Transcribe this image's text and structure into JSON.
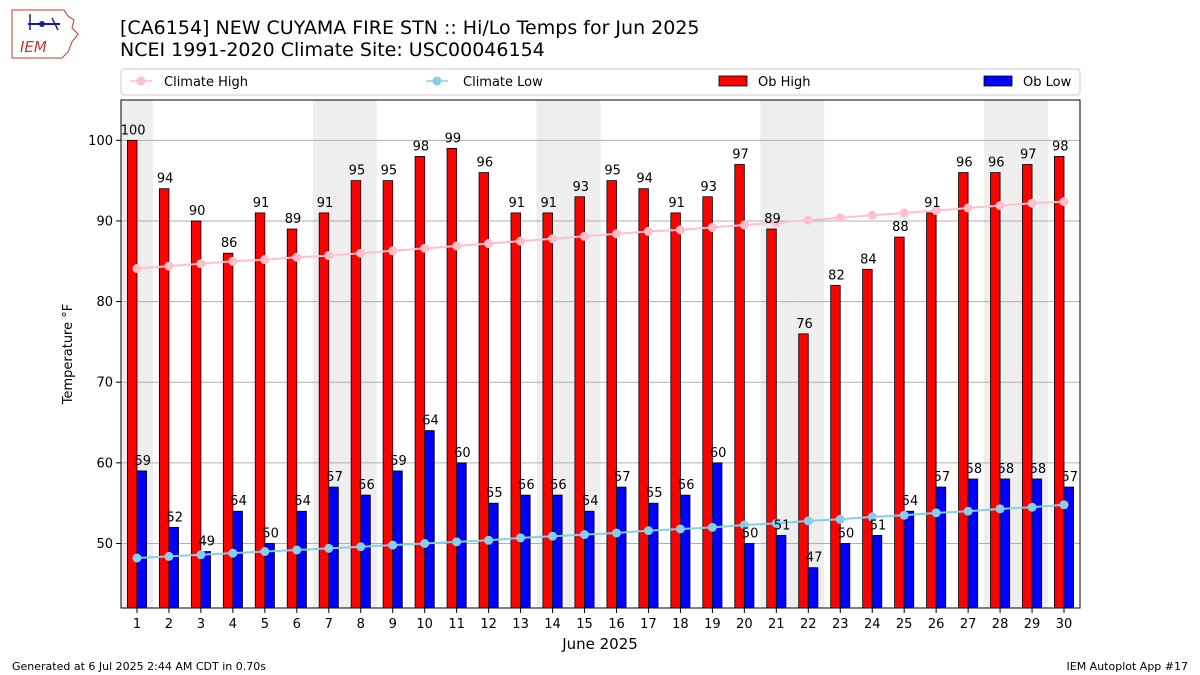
{
  "logo": {
    "text": "IEM"
  },
  "header": {
    "title": "[CA6154] NEW CUYAMA FIRE STN :: Hi/Lo Temps for Jun 2025",
    "subtitle": "NCEI 1991-2020 Climate Site: USC00046154"
  },
  "footer": {
    "generated": "Generated at 6 Jul 2025 2:44 AM CDT in 0.70s",
    "app": "IEM Autoplot App #17"
  },
  "colors": {
    "ob_high": "#ff0000",
    "ob_low": "#0000ff",
    "climate_high": "#ffc0cb",
    "climate_low": "#87ceeb",
    "weekend_band": "#eeeeee"
  },
  "chart_data": {
    "type": "bar",
    "xlabel": "June 2025",
    "ylabel": "Temperature °F",
    "ylim": [
      42,
      105
    ],
    "yticks": [
      50,
      60,
      70,
      80,
      90,
      100
    ],
    "grid": true,
    "legend_position": "top",
    "legend": [
      "Climate High",
      "Climate Low",
      "Ob High",
      "Ob Low"
    ],
    "categories": [
      "1",
      "2",
      "3",
      "4",
      "5",
      "6",
      "7",
      "8",
      "9",
      "10",
      "11",
      "12",
      "13",
      "14",
      "15",
      "16",
      "17",
      "18",
      "19",
      "20",
      "21",
      "22",
      "23",
      "24",
      "25",
      "26",
      "27",
      "28",
      "29",
      "30"
    ],
    "shaded_days": [
      1,
      7,
      8,
      14,
      15,
      21,
      22,
      28,
      29
    ],
    "series": [
      {
        "name": "Ob High",
        "kind": "bar",
        "values": [
          100,
          94,
          90,
          86,
          91,
          89,
          91,
          95,
          95,
          98,
          99,
          96,
          91,
          91,
          93,
          95,
          94,
          91,
          93,
          97,
          89,
          76,
          82,
          84,
          88,
          91,
          96,
          96,
          97,
          98
        ]
      },
      {
        "name": "Ob Low",
        "kind": "bar",
        "values": [
          59,
          52,
          49,
          54,
          50,
          54,
          57,
          56,
          59,
          64,
          60,
          55,
          56,
          56,
          54,
          57,
          55,
          56,
          60,
          50,
          51,
          47,
          50,
          51,
          54,
          57,
          58,
          58,
          58,
          57
        ]
      },
      {
        "name": "Climate High",
        "kind": "line",
        "values": [
          84.1,
          84.4,
          84.7,
          85.0,
          85.2,
          85.5,
          85.7,
          86.0,
          86.3,
          86.6,
          86.9,
          87.2,
          87.5,
          87.8,
          88.1,
          88.4,
          88.7,
          88.9,
          89.2,
          89.5,
          89.8,
          90.1,
          90.4,
          90.7,
          91.0,
          91.3,
          91.6,
          91.9,
          92.2,
          92.4
        ]
      },
      {
        "name": "Climate Low",
        "kind": "line",
        "values": [
          48.2,
          48.4,
          48.6,
          48.8,
          49.0,
          49.2,
          49.4,
          49.6,
          49.8,
          50.0,
          50.2,
          50.4,
          50.7,
          50.9,
          51.1,
          51.3,
          51.6,
          51.8,
          52.0,
          52.3,
          52.5,
          52.8,
          53.0,
          53.3,
          53.5,
          53.8,
          54.0,
          54.3,
          54.5,
          54.8
        ]
      }
    ]
  }
}
